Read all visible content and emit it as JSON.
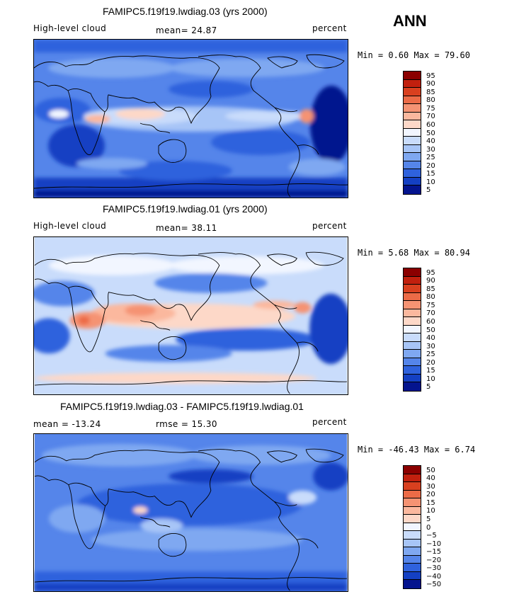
{
  "season": "ANN",
  "panels": [
    {
      "title": "FAMIPC5.f19f19.lwdiag.03 (yrs 2000)",
      "left": "High-level cloud",
      "center": "mean=  24.87",
      "right": "percent",
      "minmax": "Min =   0.60 Max =  79.60",
      "levels": [
        "95",
        "90",
        "85",
        "80",
        "75",
        "70",
        "60",
        "50",
        "40",
        "30",
        "25",
        "20",
        "15",
        "10",
        "5"
      ],
      "colors": [
        "#8b0000",
        "#c1200e",
        "#d9401f",
        "#ec6b47",
        "#f59373",
        "#fbb89e",
        "#fdd8c8",
        "#f2f6ff",
        "#c9dcfb",
        "#a7c5f7",
        "#7fa8f1",
        "#5585ea",
        "#2f62dd",
        "#1440c3",
        "#04148e"
      ]
    },
    {
      "title": "FAMIPC5.f19f19.lwdiag.01 (yrs 2000)",
      "left": "High-level cloud",
      "center": "mean=  38.11",
      "right": "percent",
      "minmax": "Min =   5.68 Max =  80.94",
      "levels": [
        "95",
        "90",
        "85",
        "80",
        "75",
        "70",
        "60",
        "50",
        "40",
        "30",
        "25",
        "20",
        "15",
        "10",
        "5"
      ],
      "colors": [
        "#8b0000",
        "#c1200e",
        "#d9401f",
        "#ec6b47",
        "#f59373",
        "#fbb89e",
        "#fdd8c8",
        "#f2f6ff",
        "#c9dcfb",
        "#a7c5f7",
        "#7fa8f1",
        "#5585ea",
        "#2f62dd",
        "#1440c3",
        "#04148e"
      ]
    },
    {
      "title": "FAMIPC5.f19f19.lwdiag.03 - FAMIPC5.f19f19.lwdiag.01",
      "left": "mean = -13.24",
      "center": "rmse =  15.30",
      "right": "percent",
      "minmax": "Min = -46.43 Max =   6.74",
      "levels": [
        "50",
        "40",
        "30",
        "20",
        "15",
        "10",
        "5",
        "0",
        "−5",
        "−10",
        "−15",
        "−20",
        "−30",
        "−40",
        "−50"
      ],
      "colors": [
        "#8b0000",
        "#c1200e",
        "#d9401f",
        "#ec6b47",
        "#f59373",
        "#fbb89e",
        "#fdd8c8",
        "#f2f6ff",
        "#c9dcfb",
        "#a7c5f7",
        "#7fa8f1",
        "#5585ea",
        "#2f62dd",
        "#1440c3",
        "#04148e"
      ]
    }
  ]
}
